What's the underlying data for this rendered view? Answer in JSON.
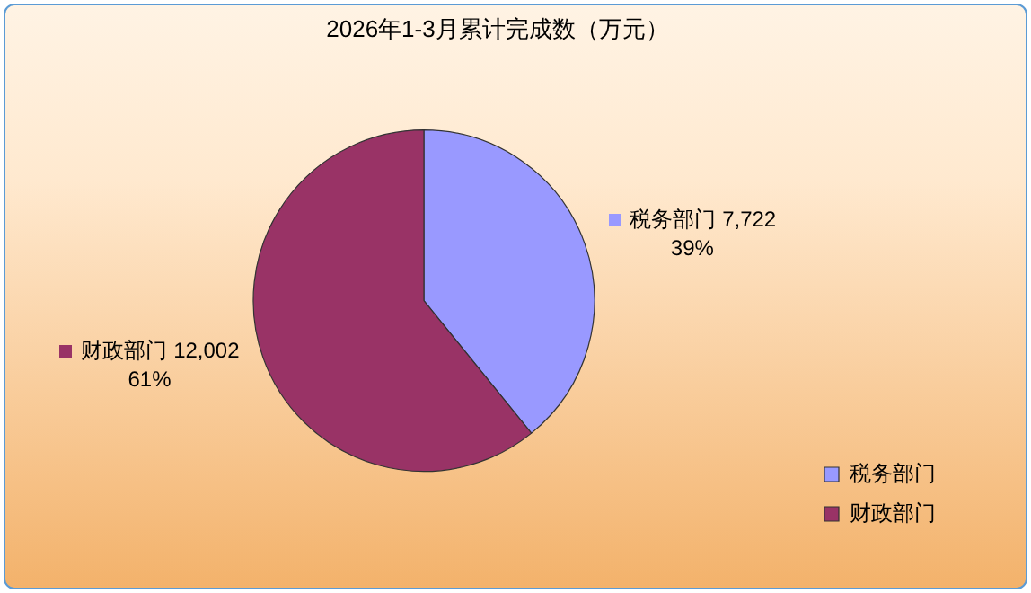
{
  "chart_data": {
    "type": "pie",
    "title": "2026年1-3月累计完成数（万元）",
    "categories": [
      "税务部门",
      "财政部门"
    ],
    "values": [
      7722,
      12002
    ],
    "colors": [
      "#9999ff",
      "#993366"
    ],
    "value_labels": [
      "7,722\n39%",
      "12,002\n61%"
    ],
    "legend": "bottom right"
  }
}
